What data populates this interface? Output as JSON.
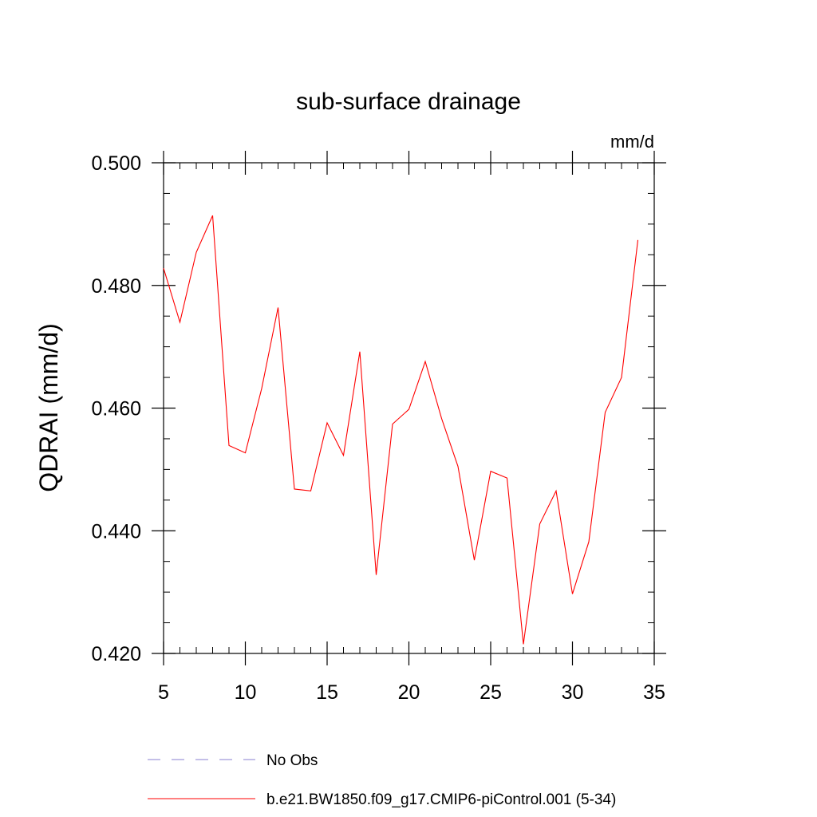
{
  "chart_data": {
    "type": "line",
    "title": "sub-surface drainage",
    "units": "mm/d",
    "ylabel": "QDRAI  (mm/d)",
    "xlim": [
      5,
      35
    ],
    "ylim": [
      0.42,
      0.5
    ],
    "x_ticks": [
      5,
      10,
      15,
      20,
      25,
      30,
      35
    ],
    "x_tick_labels": [
      "5",
      "10",
      "15",
      "20",
      "25",
      "30",
      "35"
    ],
    "y_ticks": [
      0.42,
      0.44,
      0.46,
      0.48,
      0.5
    ],
    "y_tick_labels": [
      "0.420",
      "0.440",
      "0.460",
      "0.480",
      "0.500"
    ],
    "legend": [
      {
        "label": "No Obs",
        "color": "#8a7fd0",
        "style": "dashed"
      },
      {
        "label": "b.e21.BW1850.f09_g17.CMIP6-piControl.001 (5-34)",
        "color": "#ff0000",
        "style": "solid"
      }
    ],
    "series": [
      {
        "name": "b.e21.BW1850.f09_g17.CMIP6-piControl.001 (5-34)",
        "color": "#ff0000",
        "x": [
          5,
          6,
          7,
          8,
          9,
          10,
          11,
          12,
          13,
          14,
          15,
          16,
          17,
          18,
          19,
          20,
          21,
          22,
          23,
          24,
          25,
          26,
          27,
          28,
          29,
          30,
          31,
          32,
          33,
          34
        ],
        "values": [
          0.4828,
          0.474,
          0.4854,
          0.4914,
          0.4539,
          0.4527,
          0.4632,
          0.4764,
          0.4468,
          0.4465,
          0.4576,
          0.4523,
          0.4692,
          0.4328,
          0.4574,
          0.4598,
          0.4676,
          0.4583,
          0.4505,
          0.4352,
          0.4497,
          0.4486,
          0.4215,
          0.4411,
          0.4465,
          0.4297,
          0.4382,
          0.4593,
          0.465,
          0.4874
        ]
      }
    ]
  }
}
